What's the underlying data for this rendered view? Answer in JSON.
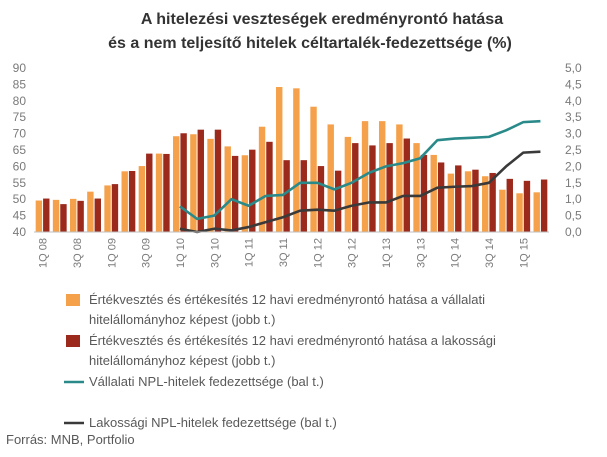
{
  "chart_data": {
    "type": "bar",
    "title": [
      "A hitelezési veszteségek eredményrontó hatása",
      "és a nem teljesítő hitelek céltartalék-fedezettsége (%)"
    ],
    "source": "Forrás: MNB, Portfolio",
    "categories": [
      "1Q 08",
      "2Q 08",
      "3Q 08",
      "4Q 08",
      "1Q 09",
      "2Q 09",
      "3Q 09",
      "4Q 09",
      "1Q 10",
      "2Q 10",
      "3Q 10",
      "4Q 10",
      "1Q 11",
      "2Q 11",
      "3Q 11",
      "4Q 11",
      "1Q 12",
      "2Q 12",
      "3Q 12",
      "4Q 12",
      "1Q 13",
      "2Q 13",
      "3Q 13",
      "4Q 13",
      "1Q 14",
      "2Q 14",
      "3Q 14",
      "4Q 14",
      "1Q 15",
      "2Q 15"
    ],
    "x_tick_labels": [
      "1Q 08",
      "3Q 08",
      "1Q 09",
      "3Q 09",
      "1Q 10",
      "3Q 10",
      "1Q 11",
      "3Q 11",
      "1Q 12",
      "3Q 12",
      "1Q 13",
      "3Q 13",
      "1Q 14",
      "3Q 14",
      "1Q 15"
    ],
    "left_axis": {
      "min": 40,
      "max": 90,
      "step": 5,
      "ticks": [
        "40",
        "45",
        "50",
        "55",
        "60",
        "65",
        "70",
        "75",
        "80",
        "85",
        "90"
      ]
    },
    "right_axis": {
      "min": 0,
      "max": 5,
      "step": 0.5,
      "ticks": [
        "0,0",
        "0,5",
        "1,0",
        "1,5",
        "2,0",
        "2,5",
        "3,0",
        "3,5",
        "4,0",
        "4,5",
        "5,0"
      ]
    },
    "series": [
      {
        "name": "Értékvesztés és értékesítés 12 havi eredményrontó hatása a vállalati hitelállományhoz képest (jobb t.)",
        "legend_lines": [
          "Értékvesztés és értékesítés 12 havi eredményrontó hatása a vállalati",
          "hitelállományhoz képest (jobb t.)"
        ],
        "kind": "bar",
        "axis": "right",
        "color": "#f5a04a",
        "values": [
          0.96,
          0.98,
          1.01,
          1.23,
          1.42,
          1.85,
          2.01,
          2.39,
          2.92,
          2.98,
          2.84,
          2.61,
          2.34,
          3.21,
          4.42,
          4.38,
          3.82,
          3.28,
          2.9,
          3.38,
          3.38,
          3.28,
          2.71,
          2.35,
          1.78,
          1.85,
          1.7,
          1.29,
          1.18,
          1.21
        ]
      },
      {
        "name": "Értékvesztés és értékesítés 12 havi eredményrontó hatása a lakossági hitelállományhoz képest (jobb t.)",
        "legend_lines": [
          "Értékvesztés és értékesítés 12 havi eredményrontó hatása a lakossági",
          "hitelállományhoz képest (jobb t.)"
        ],
        "kind": "bar",
        "axis": "right",
        "color": "#9b2a1c",
        "values": [
          1.02,
          0.85,
          0.95,
          1.02,
          1.46,
          1.86,
          2.39,
          2.38,
          3.01,
          3.12,
          3.12,
          2.32,
          2.51,
          2.75,
          2.19,
          2.19,
          2.01,
          1.87,
          2.71,
          2.64,
          2.71,
          2.85,
          2.35,
          2.12,
          2.03,
          1.9,
          1.8,
          1.62,
          1.56,
          1.6
        ]
      },
      {
        "name": "Vállalati NPL-hitelek fedezettsége (bal t.)",
        "legend_lines": [
          "Vállalati NPL-hitelek fedezettsége (bal t.)"
        ],
        "kind": "line",
        "axis": "left",
        "color": "#2a8a8a",
        "values": [
          null,
          null,
          null,
          null,
          null,
          null,
          null,
          null,
          47.8,
          44.0,
          45.0,
          50.0,
          48.0,
          51.0,
          51.3,
          55.0,
          55.0,
          53.0,
          55.0,
          58.0,
          60.0,
          61.0,
          62.5,
          68.0,
          68.5,
          68.7,
          69.0,
          71.0,
          73.5,
          73.8
        ]
      },
      {
        "name": "Lakossági NPL-hitelek fedezettsége (bal t.)",
        "legend_lines": [
          "Lakossági NPL-hitelek fedezettsége (bal t.)"
        ],
        "kind": "line",
        "axis": "left",
        "color": "#3a3a3a",
        "values": [
          null,
          null,
          null,
          null,
          null,
          null,
          null,
          null,
          41.0,
          40.0,
          41.0,
          40.5,
          41.5,
          43.0,
          44.5,
          46.5,
          46.8,
          46.5,
          48.0,
          49.0,
          49.0,
          51.0,
          51.0,
          53.5,
          53.8,
          54.0,
          55.0,
          60.0,
          64.2,
          64.5
        ]
      }
    ],
    "grid": false,
    "legend_position": "bottom"
  }
}
